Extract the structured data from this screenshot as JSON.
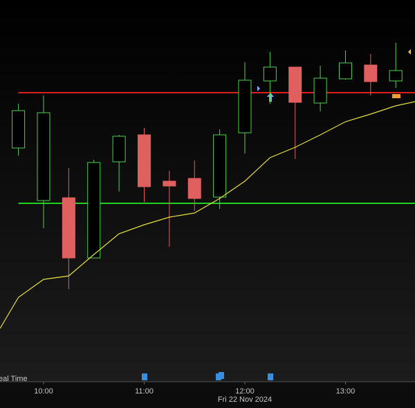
{
  "chart_data": {
    "type": "candlestick",
    "x": [
      9.75,
      10,
      10.25,
      10.5,
      10.75,
      11,
      11.25,
      11.5,
      11.75,
      12,
      12.25,
      12.5,
      12.75,
      13,
      13.25,
      13.5
    ],
    "open": [
      336,
      260,
      264,
      177,
      316,
      355,
      288,
      292,
      265,
      358,
      433,
      453,
      401,
      436,
      456,
      433
    ],
    "close": [
      390,
      387,
      177,
      315,
      353,
      280,
      281,
      263,
      355,
      434,
      453,
      402,
      437,
      459,
      432,
      448
    ],
    "high": [
      400,
      412,
      307,
      319,
      355,
      365,
      303,
      318,
      363,
      460,
      475,
      453,
      455,
      477,
      472,
      488
    ],
    "low": [
      325,
      220,
      132,
      177,
      273,
      258,
      193,
      245,
      248,
      328,
      400,
      320,
      389,
      435,
      412,
      423
    ],
    "up_color": "#4fd14f",
    "down_color": "#e06060",
    "ma": {
      "color": "#e8e040",
      "x": [
        9.567,
        9.75,
        10,
        10.25,
        10.5,
        10.75,
        11,
        11.25,
        11.5,
        11.75,
        12,
        12.25,
        12.5,
        12.75,
        13,
        13.25,
        13.5,
        13.691
      ],
      "values": [
        75,
        120,
        146,
        151,
        182,
        212,
        225,
        236,
        242,
        263,
        288,
        322,
        337,
        355,
        374,
        385,
        397,
        403
      ]
    },
    "hlines": [
      {
        "value": 416,
        "color": "#e02020"
      },
      {
        "value": 256,
        "color": "#20d020"
      }
    ],
    "xlim": [
      9.567,
      13.691
    ],
    "ylim": [
      0,
      550
    ],
    "xticks": [
      {
        "value": 10,
        "label": "10:00"
      },
      {
        "value": 11,
        "label": "11:00"
      },
      {
        "value": 12,
        "label": "12:00"
      },
      {
        "value": 13,
        "label": "13:00"
      }
    ],
    "date_label": "Fri 22 Nov 2024",
    "annotation": "eal Time"
  }
}
